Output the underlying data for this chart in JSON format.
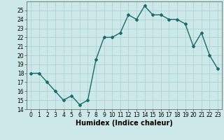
{
  "xlabel": "Humidex (Indice chaleur)",
  "x": [
    0,
    1,
    2,
    3,
    4,
    5,
    6,
    7,
    8,
    9,
    10,
    11,
    12,
    13,
    14,
    15,
    16,
    17,
    18,
    19,
    20,
    21,
    22,
    23
  ],
  "y": [
    18,
    18,
    17,
    16,
    15,
    15.5,
    14.5,
    15,
    19.5,
    22,
    22,
    22.5,
    24.5,
    24,
    25.5,
    24.5,
    24.5,
    24,
    24,
    23.5,
    21,
    22.5,
    20,
    18.5
  ],
  "line_color": "#1a6b6b",
  "marker": "D",
  "marker_size": 2.0,
  "bg_color": "#cce8e8",
  "grid_color": "#aacece",
  "ylim": [
    14,
    26
  ],
  "xlim": [
    -0.5,
    23.5
  ],
  "yticks": [
    14,
    15,
    16,
    17,
    18,
    19,
    20,
    21,
    22,
    23,
    24,
    25
  ],
  "xticks": [
    0,
    1,
    2,
    3,
    4,
    5,
    6,
    7,
    8,
    9,
    10,
    11,
    12,
    13,
    14,
    15,
    16,
    17,
    18,
    19,
    20,
    21,
    22,
    23
  ],
  "tick_fontsize": 5.5,
  "label_fontsize": 7,
  "line_width": 1.0
}
